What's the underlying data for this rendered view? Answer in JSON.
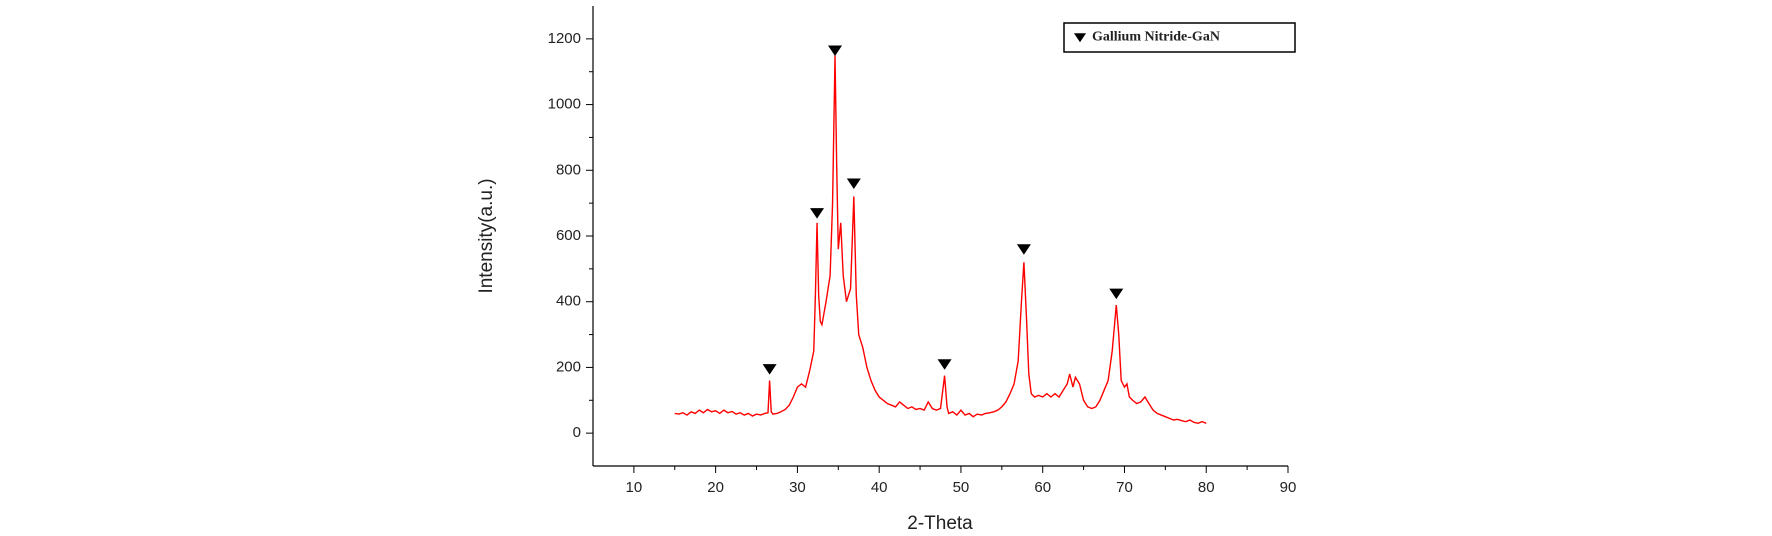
{
  "chart_data": {
    "type": "line",
    "xlabel": "2-Theta",
    "ylabel": "Intensity(a.u.)",
    "xlim": [
      5,
      90
    ],
    "xticks": [
      10,
      20,
      30,
      40,
      50,
      60,
      70,
      80,
      90
    ],
    "ylim": [
      -100,
      1300
    ],
    "yticks": [
      0,
      200,
      400,
      600,
      800,
      1000,
      1200
    ],
    "legend_position": "upper right",
    "series": [
      {
        "color": "#ff0000",
        "x": [
          15,
          15.5,
          16,
          16.5,
          17,
          17.5,
          18,
          18.5,
          19,
          19.5,
          20,
          20.5,
          21,
          21.5,
          22,
          22.5,
          23,
          23.5,
          24,
          24.5,
          25,
          25.5,
          26,
          26.4,
          26.6,
          26.8,
          27,
          27.5,
          28,
          28.5,
          29,
          29.5,
          30,
          30.5,
          31,
          31.5,
          32,
          32.2,
          32.4,
          32.6,
          32.8,
          33,
          33.5,
          34,
          34.3,
          34.6,
          34.8,
          35,
          35.3,
          35.6,
          36,
          36.5,
          36.9,
          37.2,
          37.5,
          38,
          38.5,
          39,
          39.5,
          40,
          40.5,
          41,
          41.5,
          42,
          42.5,
          43,
          43.5,
          44,
          44.5,
          45,
          45.5,
          46,
          46.5,
          47,
          47.5,
          48,
          48.3,
          48.5,
          49,
          49.5,
          50,
          50.5,
          51,
          51.5,
          52,
          52.5,
          53,
          53.5,
          54,
          54.5,
          55,
          55.5,
          56,
          56.5,
          57,
          57.4,
          57.7,
          58,
          58.3,
          58.6,
          59,
          59.5,
          60,
          60.5,
          61,
          61.5,
          62,
          62.5,
          63,
          63.3,
          63.7,
          64,
          64.5,
          65,
          65.5,
          66,
          66.5,
          67,
          67.5,
          68,
          68.5,
          69,
          69.3,
          69.6,
          70,
          70.3,
          70.6,
          71,
          71.5,
          72,
          72.5,
          73,
          73.5,
          74,
          74.5,
          75,
          75.5,
          76,
          76.5,
          77,
          77.5,
          78,
          78.5,
          79,
          79.5,
          80
        ],
        "values": [
          60,
          58,
          62,
          55,
          65,
          60,
          70,
          62,
          72,
          65,
          68,
          60,
          70,
          62,
          66,
          58,
          62,
          55,
          60,
          52,
          58,
          55,
          60,
          62,
          160,
          65,
          58,
          60,
          65,
          72,
          85,
          110,
          140,
          150,
          140,
          190,
          250,
          420,
          640,
          420,
          340,
          330,
          400,
          480,
          700,
          1150,
          820,
          560,
          640,
          480,
          400,
          440,
          720,
          420,
          300,
          260,
          200,
          160,
          130,
          110,
          100,
          90,
          85,
          80,
          95,
          85,
          75,
          80,
          72,
          75,
          70,
          95,
          75,
          70,
          75,
          175,
          80,
          60,
          65,
          55,
          70,
          55,
          60,
          50,
          58,
          55,
          60,
          62,
          65,
          70,
          80,
          95,
          120,
          150,
          220,
          400,
          520,
          360,
          180,
          120,
          110,
          115,
          110,
          120,
          110,
          120,
          110,
          130,
          150,
          180,
          140,
          170,
          150,
          100,
          80,
          75,
          80,
          100,
          130,
          160,
          250,
          390,
          300,
          160,
          140,
          150,
          110,
          100,
          90,
          95,
          110,
          90,
          70,
          60,
          55,
          50,
          45,
          40,
          42,
          38,
          35,
          40,
          33,
          30,
          35,
          30
        ]
      },
      {
        "name": "Gallium Nitride-GaN",
        "color": "#000000",
        "marker": "triangle-down",
        "x": [
          26.6,
          32.4,
          34.6,
          36.9,
          48.0,
          57.7,
          69.0
        ],
        "values": [
          195,
          670,
          1165,
          760,
          210,
          560,
          425
        ]
      }
    ]
  }
}
